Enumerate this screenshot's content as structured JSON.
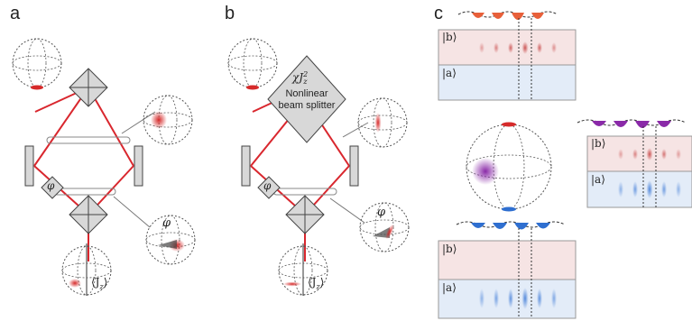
{
  "panels": {
    "a": "a",
    "b": "b",
    "c": "c"
  },
  "labels": {
    "phase": "φ",
    "jz": "⟨J",
    "jz_sub": "z",
    "jz_close": "⟩",
    "chi": "χJ",
    "chi_sub": "z",
    "chi_sup": "2",
    "nonlinear": "Nonlinear",
    "beam_splitter": "beam splitter",
    "ket_b": "|b⟩",
    "ket_a": "|a⟩"
  },
  "colors": {
    "beam": "#d9272e",
    "red_state": "#d62a2a",
    "blue_state": "#2f6fd0",
    "purple_state": "#8a2aa8",
    "mirror": "#d8d8d8",
    "sphere_line": "#555555",
    "box_red_bg": "#f6e4e4",
    "box_blue_bg": "#e3ecf8",
    "potential_orange": "#e8603a",
    "potential_blue": "#2f6fd0",
    "potential_purple": "#8a2aa8"
  }
}
